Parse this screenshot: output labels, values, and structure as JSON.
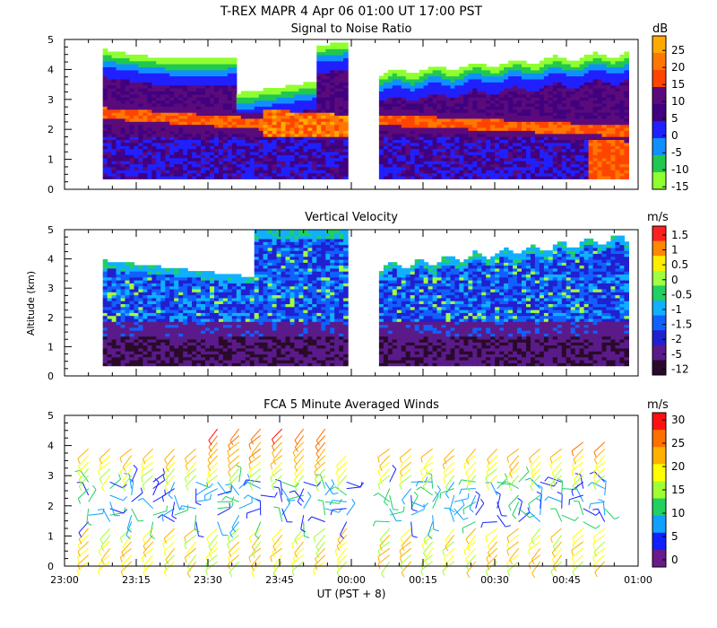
{
  "figure": {
    "title": "T-REX   MAPR   4 Apr 06   01:00 UT   17:00   PST",
    "xlabel": "UT  (PST + 8)",
    "x_ticks": [
      "23:00",
      "23:15",
      "23:30",
      "23:45",
      "00:00",
      "00:15",
      "00:30",
      "00:45",
      "01:00"
    ]
  },
  "chart_data": [
    {
      "type": "heatmap",
      "id": "snr",
      "title": "Signal to Noise Ratio",
      "ylabel": "",
      "ylim": [
        0,
        5
      ],
      "y_ticks": [
        "0",
        "1",
        "2",
        "3",
        "4",
        "5"
      ],
      "colorbar_unit": "dB",
      "colorbar_labels": [
        "25",
        "20",
        "15",
        "10",
        "5",
        "0",
        "-5",
        "-10",
        "-15"
      ],
      "colors": [
        "#ffaa00",
        "#ff7700",
        "#ff4400",
        "#5a0a7a",
        "#400080",
        "#2020ff",
        "#1090ff",
        "#20c850",
        "#90ff30"
      ],
      "gap": "00:00 to 00:05"
    },
    {
      "type": "heatmap",
      "id": "vv",
      "title": "Vertical Velocity",
      "ylabel": "Altitude (km)",
      "ylim": [
        0,
        5
      ],
      "y_ticks": [
        "0",
        "1",
        "2",
        "3",
        "4",
        "5"
      ],
      "colorbar_unit": "m/s",
      "colorbar_labels": [
        "1.5",
        "1",
        "0.5",
        "0",
        "-0.5",
        "-1",
        "-1.5",
        "-2",
        "-5",
        "-12"
      ],
      "colors": [
        "#ff2020",
        "#ff8800",
        "#ffee00",
        "#a0ff40",
        "#20d060",
        "#10b0ff",
        "#1060ff",
        "#2020d0",
        "#5a1a8a",
        "#2a0a2a"
      ],
      "gap": "00:00 to 00:05"
    },
    {
      "type": "wind_barbs",
      "id": "winds",
      "title": "FCA 5 Minute Averaged Winds",
      "ylabel": "",
      "ylim": [
        0,
        5
      ],
      "y_ticks": [
        "0",
        "1",
        "2",
        "3",
        "4",
        "5"
      ],
      "colorbar_unit": "m/s",
      "colorbar_labels": [
        "30",
        "25",
        "20",
        "15",
        "10",
        "5",
        "0"
      ],
      "colors": [
        "#ff1010",
        "#ff7000",
        "#ffb000",
        "#ffff00",
        "#a0ff30",
        "#20d060",
        "#10a0ff",
        "#1020ff",
        "#6a1a8a"
      ]
    }
  ]
}
